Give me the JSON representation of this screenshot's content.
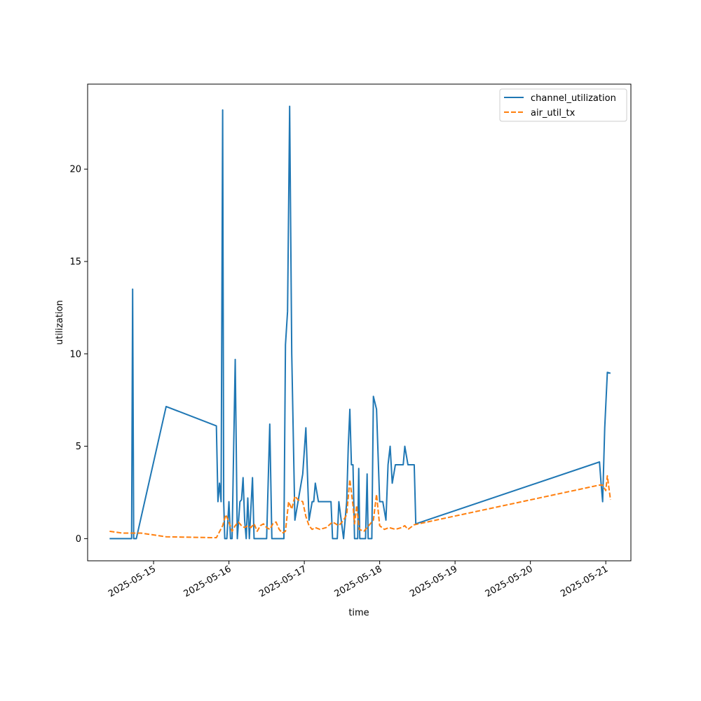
{
  "chart_data": {
    "type": "line",
    "title": "",
    "xlabel": "time",
    "ylabel": "utilization",
    "xlim": [
      "2025-05-14 03:00",
      "2025-05-21 08:00"
    ],
    "ylim": [
      -1.2,
      24.6
    ],
    "x_ticks": [
      "2025-05-15",
      "2025-05-16",
      "2025-05-17",
      "2025-05-18",
      "2025-05-19",
      "2025-05-20",
      "2025-05-21"
    ],
    "y_ticks": [
      0,
      5,
      10,
      15,
      20
    ],
    "legend_position": "top-right",
    "grid": false,
    "series": [
      {
        "name": "channel_utilization",
        "color": "#1f77b4",
        "style": "solid",
        "points": [
          [
            "2025-05-14 10:00",
            0
          ],
          [
            "2025-05-14 16:00",
            0
          ],
          [
            "2025-05-14 17:00",
            0
          ],
          [
            "2025-05-14 17:20",
            13.5
          ],
          [
            "2025-05-14 17:40",
            0
          ],
          [
            "2025-05-14 18:30",
            0
          ],
          [
            "2025-05-15 04:00",
            7.15
          ],
          [
            "2025-05-15 20:00",
            6.1
          ],
          [
            "2025-05-15 20:30",
            2.0
          ],
          [
            "2025-05-15 21:00",
            3.0
          ],
          [
            "2025-05-15 21:30",
            2.0
          ],
          [
            "2025-05-15 22:00",
            23.2
          ],
          [
            "2025-05-15 22:20",
            2.0
          ],
          [
            "2025-05-15 22:40",
            0
          ],
          [
            "2025-05-15 23:20",
            0
          ],
          [
            "2025-05-16 00:00",
            2.0
          ],
          [
            "2025-05-16 00:30",
            0
          ],
          [
            "2025-05-16 01:00",
            0
          ],
          [
            "2025-05-16 02:00",
            9.7
          ],
          [
            "2025-05-16 02:40",
            0
          ],
          [
            "2025-05-16 03:30",
            2.0
          ],
          [
            "2025-05-16 04:00",
            2.1
          ],
          [
            "2025-05-16 04:30",
            3.3
          ],
          [
            "2025-05-16 05:00",
            1.0
          ],
          [
            "2025-05-16 05:30",
            0
          ],
          [
            "2025-05-16 06:00",
            2.2
          ],
          [
            "2025-05-16 06:30",
            0
          ],
          [
            "2025-05-16 07:30",
            3.3
          ],
          [
            "2025-05-16 08:00",
            0
          ],
          [
            "2025-05-16 12:00",
            0
          ],
          [
            "2025-05-16 13:00",
            6.2
          ],
          [
            "2025-05-16 13:40",
            0
          ],
          [
            "2025-05-16 17:30",
            0
          ],
          [
            "2025-05-16 18:00",
            10.5
          ],
          [
            "2025-05-16 18:40",
            12.3
          ],
          [
            "2025-05-16 19:20",
            23.4
          ],
          [
            "2025-05-16 20:00",
            10.0
          ],
          [
            "2025-05-16 21:00",
            1.0
          ],
          [
            "2025-05-16 22:30",
            2.5
          ],
          [
            "2025-05-16 23:30",
            3.5
          ],
          [
            "2025-05-17 00:30",
            6.0
          ],
          [
            "2025-05-17 01:30",
            1.0
          ],
          [
            "2025-05-17 02:30",
            2.0
          ],
          [
            "2025-05-17 03:00",
            2.0
          ],
          [
            "2025-05-17 03:30",
            3.0
          ],
          [
            "2025-05-17 04:30",
            2.0
          ],
          [
            "2025-05-17 08:30",
            2.0
          ],
          [
            "2025-05-17 09:00",
            0
          ],
          [
            "2025-05-17 10:30",
            0
          ],
          [
            "2025-05-17 11:00",
            2.0
          ],
          [
            "2025-05-17 12:30",
            0
          ],
          [
            "2025-05-17 13:30",
            2.0
          ],
          [
            "2025-05-17 14:00",
            5.0
          ],
          [
            "2025-05-17 14:30",
            7.0
          ],
          [
            "2025-05-17 15:00",
            4.0
          ],
          [
            "2025-05-17 15:30",
            4.0
          ],
          [
            "2025-05-17 16:00",
            0
          ],
          [
            "2025-05-17 17:00",
            0
          ],
          [
            "2025-05-17 17:20",
            3.8
          ],
          [
            "2025-05-17 17:40",
            0
          ],
          [
            "2025-05-17 19:30",
            0
          ],
          [
            "2025-05-17 20:00",
            3.5
          ],
          [
            "2025-05-17 20:20",
            0
          ],
          [
            "2025-05-17 21:30",
            0
          ],
          [
            "2025-05-17 22:00",
            7.7
          ],
          [
            "2025-05-17 23:00",
            7.0
          ],
          [
            "2025-05-18 00:00",
            2.0
          ],
          [
            "2025-05-18 01:00",
            2.0
          ],
          [
            "2025-05-18 02:00",
            1.0
          ],
          [
            "2025-05-18 02:40",
            4.0
          ],
          [
            "2025-05-18 03:20",
            5.0
          ],
          [
            "2025-05-18 04:00",
            3.0
          ],
          [
            "2025-05-18 05:00",
            4.0
          ],
          [
            "2025-05-18 06:00",
            4.0
          ],
          [
            "2025-05-18 07:30",
            4.0
          ],
          [
            "2025-05-18 08:00",
            5.0
          ],
          [
            "2025-05-18 09:00",
            4.0
          ],
          [
            "2025-05-18 11:00",
            4.0
          ],
          [
            "2025-05-18 11:30",
            0.8
          ],
          [
            "2025-05-20 22:00",
            4.15
          ],
          [
            "2025-05-20 22:30",
            3.0
          ],
          [
            "2025-05-20 23:00",
            2.0
          ],
          [
            "2025-05-20 23:40",
            6.0
          ],
          [
            "2025-05-21 00:30",
            9.0
          ],
          [
            "2025-05-21 01:30",
            8.95
          ]
        ]
      },
      {
        "name": "air_util_tx",
        "color": "#ff7f0e",
        "style": "dashed",
        "points": [
          [
            "2025-05-14 10:00",
            0.4
          ],
          [
            "2025-05-14 12:00",
            0.35
          ],
          [
            "2025-05-14 14:00",
            0.3
          ],
          [
            "2025-05-14 16:00",
            0.3
          ],
          [
            "2025-05-14 18:00",
            0.3
          ],
          [
            "2025-05-14 20:00",
            0.3
          ],
          [
            "2025-05-15 04:00",
            0.1
          ],
          [
            "2025-05-15 20:00",
            0.05
          ],
          [
            "2025-05-15 22:00",
            0.7
          ],
          [
            "2025-05-15 23:00",
            1.3
          ],
          [
            "2025-05-16 00:00",
            0.9
          ],
          [
            "2025-05-16 01:00",
            0.4
          ],
          [
            "2025-05-16 02:00",
            0.7
          ],
          [
            "2025-05-16 03:00",
            0.9
          ],
          [
            "2025-05-16 04:00",
            0.7
          ],
          [
            "2025-05-16 05:00",
            0.6
          ],
          [
            "2025-05-16 06:00",
            0.7
          ],
          [
            "2025-05-16 07:00",
            0.6
          ],
          [
            "2025-05-16 08:00",
            0.8
          ],
          [
            "2025-05-16 09:00",
            0.4
          ],
          [
            "2025-05-16 10:00",
            0.7
          ],
          [
            "2025-05-16 11:00",
            0.8
          ],
          [
            "2025-05-16 12:00",
            0.6
          ],
          [
            "2025-05-16 13:00",
            0.5
          ],
          [
            "2025-05-16 14:00",
            0.8
          ],
          [
            "2025-05-16 15:00",
            0.9
          ],
          [
            "2025-05-16 16:00",
            0.5
          ],
          [
            "2025-05-16 17:00",
            0.3
          ],
          [
            "2025-05-16 18:00",
            0.4
          ],
          [
            "2025-05-16 19:00",
            2.0
          ],
          [
            "2025-05-16 20:00",
            1.6
          ],
          [
            "2025-05-16 21:00",
            2.3
          ],
          [
            "2025-05-16 22:00",
            2.1
          ],
          [
            "2025-05-16 23:30",
            2.0
          ],
          [
            "2025-05-17 00:30",
            1.2
          ],
          [
            "2025-05-17 01:30",
            0.7
          ],
          [
            "2025-05-17 02:30",
            0.5
          ],
          [
            "2025-05-17 03:30",
            0.6
          ],
          [
            "2025-05-17 05:00",
            0.5
          ],
          [
            "2025-05-17 07:00",
            0.6
          ],
          [
            "2025-05-17 09:00",
            0.9
          ],
          [
            "2025-05-17 11:00",
            0.7
          ],
          [
            "2025-05-17 12:30",
            1.0
          ],
          [
            "2025-05-17 13:30",
            1.3
          ],
          [
            "2025-05-17 14:30",
            3.2
          ],
          [
            "2025-05-17 15:30",
            1.8
          ],
          [
            "2025-05-17 16:00",
            0.8
          ],
          [
            "2025-05-17 16:40",
            1.8
          ],
          [
            "2025-05-17 17:30",
            0.5
          ],
          [
            "2025-05-17 19:00",
            0.4
          ],
          [
            "2025-05-17 20:30",
            0.7
          ],
          [
            "2025-05-17 22:00",
            1.0
          ],
          [
            "2025-05-17 23:00",
            2.4
          ],
          [
            "2025-05-18 00:00",
            0.7
          ],
          [
            "2025-05-18 01:30",
            0.5
          ],
          [
            "2025-05-18 03:00",
            0.6
          ],
          [
            "2025-05-18 05:00",
            0.5
          ],
          [
            "2025-05-18 07:00",
            0.6
          ],
          [
            "2025-05-18 08:00",
            0.7
          ],
          [
            "2025-05-18 09:00",
            0.5
          ],
          [
            "2025-05-18 11:00",
            0.75
          ],
          [
            "2025-05-20 22:00",
            2.9
          ],
          [
            "2025-05-20 23:00",
            2.9
          ],
          [
            "2025-05-21 00:00",
            2.6
          ],
          [
            "2025-05-21 00:30",
            3.4
          ],
          [
            "2025-05-21 01:30",
            2.1
          ]
        ]
      }
    ]
  }
}
